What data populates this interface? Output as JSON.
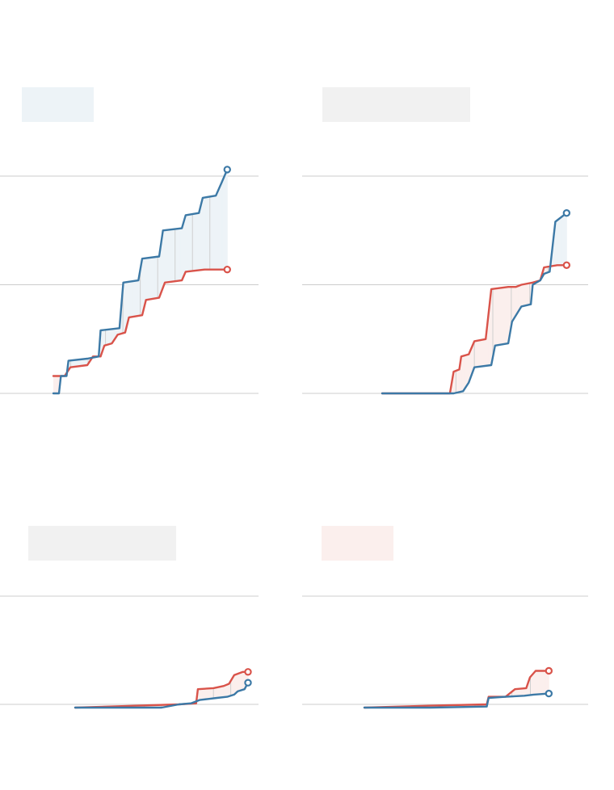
{
  "colors": {
    "blue": "#3c79a6",
    "red": "#d9534a",
    "blue_fill": "#edf3f7",
    "red_fill": "#fbefed",
    "grey_box": "#f1f1f1",
    "grid": "#cccccc",
    "drop_line": "#cfcfcf"
  },
  "chart_data": [
    {
      "type": "line",
      "title": "",
      "label_box_color": "#edf3f7",
      "grid_levels": [
        0,
        0.5,
        1
      ],
      "ylim": [
        0,
        1
      ],
      "xlim": [
        0,
        1
      ],
      "series": [
        {
          "color": "#3c79a6",
          "points": [
            [
              0.0,
              0.0
            ],
            [
              0.03,
              0.0
            ],
            [
              0.04,
              0.08
            ],
            [
              0.07,
              0.08
            ],
            [
              0.08,
              0.15
            ],
            [
              0.18,
              0.16
            ],
            [
              0.24,
              0.17
            ],
            [
              0.25,
              0.29
            ],
            [
              0.35,
              0.3
            ],
            [
              0.37,
              0.51
            ],
            [
              0.45,
              0.52
            ],
            [
              0.47,
              0.62
            ],
            [
              0.56,
              0.63
            ],
            [
              0.58,
              0.75
            ],
            [
              0.68,
              0.76
            ],
            [
              0.7,
              0.82
            ],
            [
              0.77,
              0.83
            ],
            [
              0.79,
              0.9
            ],
            [
              0.86,
              0.91
            ],
            [
              0.89,
              0.97
            ],
            [
              0.92,
              1.03
            ]
          ]
        },
        {
          "color": "#d9534a",
          "points": [
            [
              0.0,
              0.08
            ],
            [
              0.06,
              0.08
            ],
            [
              0.09,
              0.12
            ],
            [
              0.18,
              0.13
            ],
            [
              0.21,
              0.17
            ],
            [
              0.25,
              0.17
            ],
            [
              0.27,
              0.22
            ],
            [
              0.31,
              0.23
            ],
            [
              0.34,
              0.27
            ],
            [
              0.38,
              0.28
            ],
            [
              0.4,
              0.35
            ],
            [
              0.47,
              0.36
            ],
            [
              0.49,
              0.43
            ],
            [
              0.56,
              0.44
            ],
            [
              0.59,
              0.51
            ],
            [
              0.68,
              0.52
            ],
            [
              0.7,
              0.56
            ],
            [
              0.8,
              0.57
            ],
            [
              0.92,
              0.57
            ]
          ]
        }
      ]
    },
    {
      "type": "line",
      "title": "",
      "label_box_color": "#f1f1f1",
      "grid_levels": [
        0,
        0.5,
        1
      ],
      "ylim": [
        0,
        1
      ],
      "xlim": [
        0,
        1
      ],
      "series": [
        {
          "color": "#3c79a6",
          "points": [
            [
              0.0,
              0.0
            ],
            [
              0.38,
              0.0
            ],
            [
              0.43,
              0.01
            ],
            [
              0.46,
              0.05
            ],
            [
              0.49,
              0.12
            ],
            [
              0.58,
              0.13
            ],
            [
              0.6,
              0.22
            ],
            [
              0.67,
              0.23
            ],
            [
              0.69,
              0.33
            ],
            [
              0.74,
              0.4
            ],
            [
              0.79,
              0.41
            ],
            [
              0.8,
              0.5
            ],
            [
              0.84,
              0.52
            ],
            [
              0.86,
              0.55
            ],
            [
              0.89,
              0.56
            ],
            [
              0.92,
              0.79
            ],
            [
              0.98,
              0.83
            ]
          ]
        },
        {
          "color": "#d9534a",
          "points": [
            [
              0.0,
              0.0
            ],
            [
              0.36,
              0.0
            ],
            [
              0.38,
              0.1
            ],
            [
              0.41,
              0.11
            ],
            [
              0.42,
              0.17
            ],
            [
              0.46,
              0.18
            ],
            [
              0.49,
              0.24
            ],
            [
              0.55,
              0.25
            ],
            [
              0.58,
              0.48
            ],
            [
              0.67,
              0.49
            ],
            [
              0.71,
              0.49
            ],
            [
              0.74,
              0.5
            ],
            [
              0.8,
              0.51
            ],
            [
              0.84,
              0.52
            ],
            [
              0.86,
              0.58
            ],
            [
              0.93,
              0.59
            ],
            [
              0.98,
              0.59
            ]
          ]
        }
      ]
    },
    {
      "type": "line",
      "title": "",
      "label_box_color": "#f1f1f1",
      "grid_levels": [
        0,
        1
      ],
      "ylim": [
        0,
        1
      ],
      "xlim": [
        0,
        1
      ],
      "series": [
        {
          "color": "#3c79a6",
          "points": [
            [
              0.0,
              -0.03
            ],
            [
              0.5,
              -0.03
            ],
            [
              0.6,
              0.0
            ],
            [
              0.67,
              0.01
            ],
            [
              0.72,
              0.04
            ],
            [
              0.77,
              0.05
            ],
            [
              0.82,
              0.06
            ],
            [
              0.88,
              0.07
            ],
            [
              0.92,
              0.09
            ],
            [
              0.94,
              0.12
            ],
            [
              0.98,
              0.14
            ],
            [
              1.0,
              0.2
            ]
          ]
        },
        {
          "color": "#d9534a",
          "points": [
            [
              0.0,
              -0.03
            ],
            [
              0.4,
              -0.01
            ],
            [
              0.6,
              0.0
            ],
            [
              0.7,
              0.01
            ],
            [
              0.71,
              0.14
            ],
            [
              0.8,
              0.15
            ],
            [
              0.86,
              0.17
            ],
            [
              0.89,
              0.19
            ],
            [
              0.92,
              0.27
            ],
            [
              0.97,
              0.3
            ],
            [
              1.0,
              0.3
            ]
          ]
        }
      ]
    },
    {
      "type": "line",
      "title": "",
      "label_box_color": "#fbefed",
      "grid_levels": [
        0,
        1
      ],
      "ylim": [
        0,
        1
      ],
      "xlim": [
        0,
        1
      ],
      "series": [
        {
          "color": "#3c79a6",
          "points": [
            [
              0.0,
              -0.03
            ],
            [
              0.35,
              -0.03
            ],
            [
              0.65,
              -0.02
            ],
            [
              0.66,
              0.06
            ],
            [
              0.75,
              0.07
            ],
            [
              0.85,
              0.08
            ],
            [
              0.9,
              0.09
            ],
            [
              0.98,
              0.1
            ]
          ]
        },
        {
          "color": "#d9534a",
          "points": [
            [
              0.0,
              -0.03
            ],
            [
              0.4,
              -0.01
            ],
            [
              0.65,
              0.0
            ],
            [
              0.66,
              0.07
            ],
            [
              0.75,
              0.07
            ],
            [
              0.8,
              0.14
            ],
            [
              0.86,
              0.15
            ],
            [
              0.88,
              0.25
            ],
            [
              0.91,
              0.31
            ],
            [
              0.98,
              0.31
            ]
          ]
        }
      ]
    }
  ]
}
